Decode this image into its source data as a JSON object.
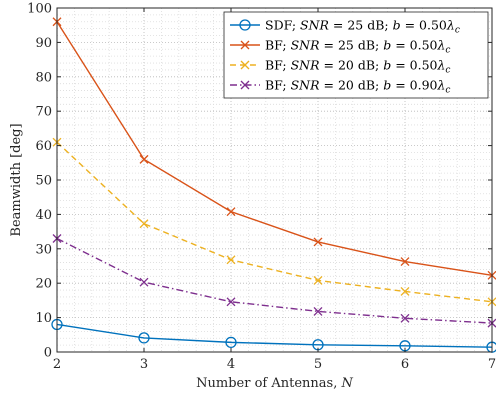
{
  "chart_data": {
    "type": "line",
    "xlabel": "Number of Antennas, N",
    "ylabel": "Beamwidth [deg]",
    "xlim": [
      2,
      7
    ],
    "ylim": [
      0,
      100
    ],
    "x_ticks": [
      2,
      3,
      4,
      5,
      6,
      7
    ],
    "y_ticks": [
      0,
      10,
      20,
      30,
      40,
      50,
      60,
      70,
      80,
      90,
      100
    ],
    "grid": "on (dotted, major and minor)",
    "legend_position": "top-right",
    "x": [
      2,
      3,
      4,
      5,
      6,
      7
    ],
    "series": [
      {
        "name": "SDF; SNR = 25 dB; b = 0.50λc",
        "values": [
          8.0,
          4.1,
          2.8,
          2.1,
          1.8,
          1.4
        ],
        "color": "#0072BD",
        "line_style": "solid",
        "marker": "circle"
      },
      {
        "name": "BF; SNR = 25 dB; b = 0.50λc",
        "values": [
          96.0,
          56.0,
          40.8,
          32.0,
          26.3,
          22.3
        ],
        "color": "#D95319",
        "line_style": "solid",
        "marker": "x"
      },
      {
        "name": "BF; SNR = 20 dB; b = 0.50λc",
        "values": [
          61.0,
          37.3,
          26.8,
          20.8,
          17.6,
          14.6
        ],
        "color": "#EDB120",
        "line_style": "dashed",
        "marker": "x"
      },
      {
        "name": "BF; SNR = 20 dB; b = 0.90λc",
        "values": [
          33.0,
          20.3,
          14.6,
          11.8,
          9.8,
          8.4
        ],
        "color": "#7E2F8E",
        "line_style": "dashdot",
        "marker": "x"
      }
    ],
    "legend_entries": [
      {
        "prefix": "SDF; ",
        "snr_var": "SNR",
        "snr_val": " = 25 dB; ",
        "b_var": "b",
        "b_val": " = 0.50",
        "lambda": "λ",
        "sub": "c"
      },
      {
        "prefix": "BF; ",
        "snr_var": "SNR",
        "snr_val": " = 25 dB; ",
        "b_var": "b",
        "b_val": " = 0.50",
        "lambda": "λ",
        "sub": "c"
      },
      {
        "prefix": "BF; ",
        "snr_var": "SNR",
        "snr_val": " = 20 dB; ",
        "b_var": "b",
        "b_val": " = 0.50",
        "lambda": "λ",
        "sub": "c"
      },
      {
        "prefix": "BF; ",
        "snr_var": "SNR",
        "snr_val": " = 20 dB; ",
        "b_var": "b",
        "b_val": " = 0.90",
        "lambda": "λ",
        "sub": "c"
      }
    ],
    "xlabel_parts": {
      "text": "Number of Antennas, ",
      "var": "N"
    }
  }
}
